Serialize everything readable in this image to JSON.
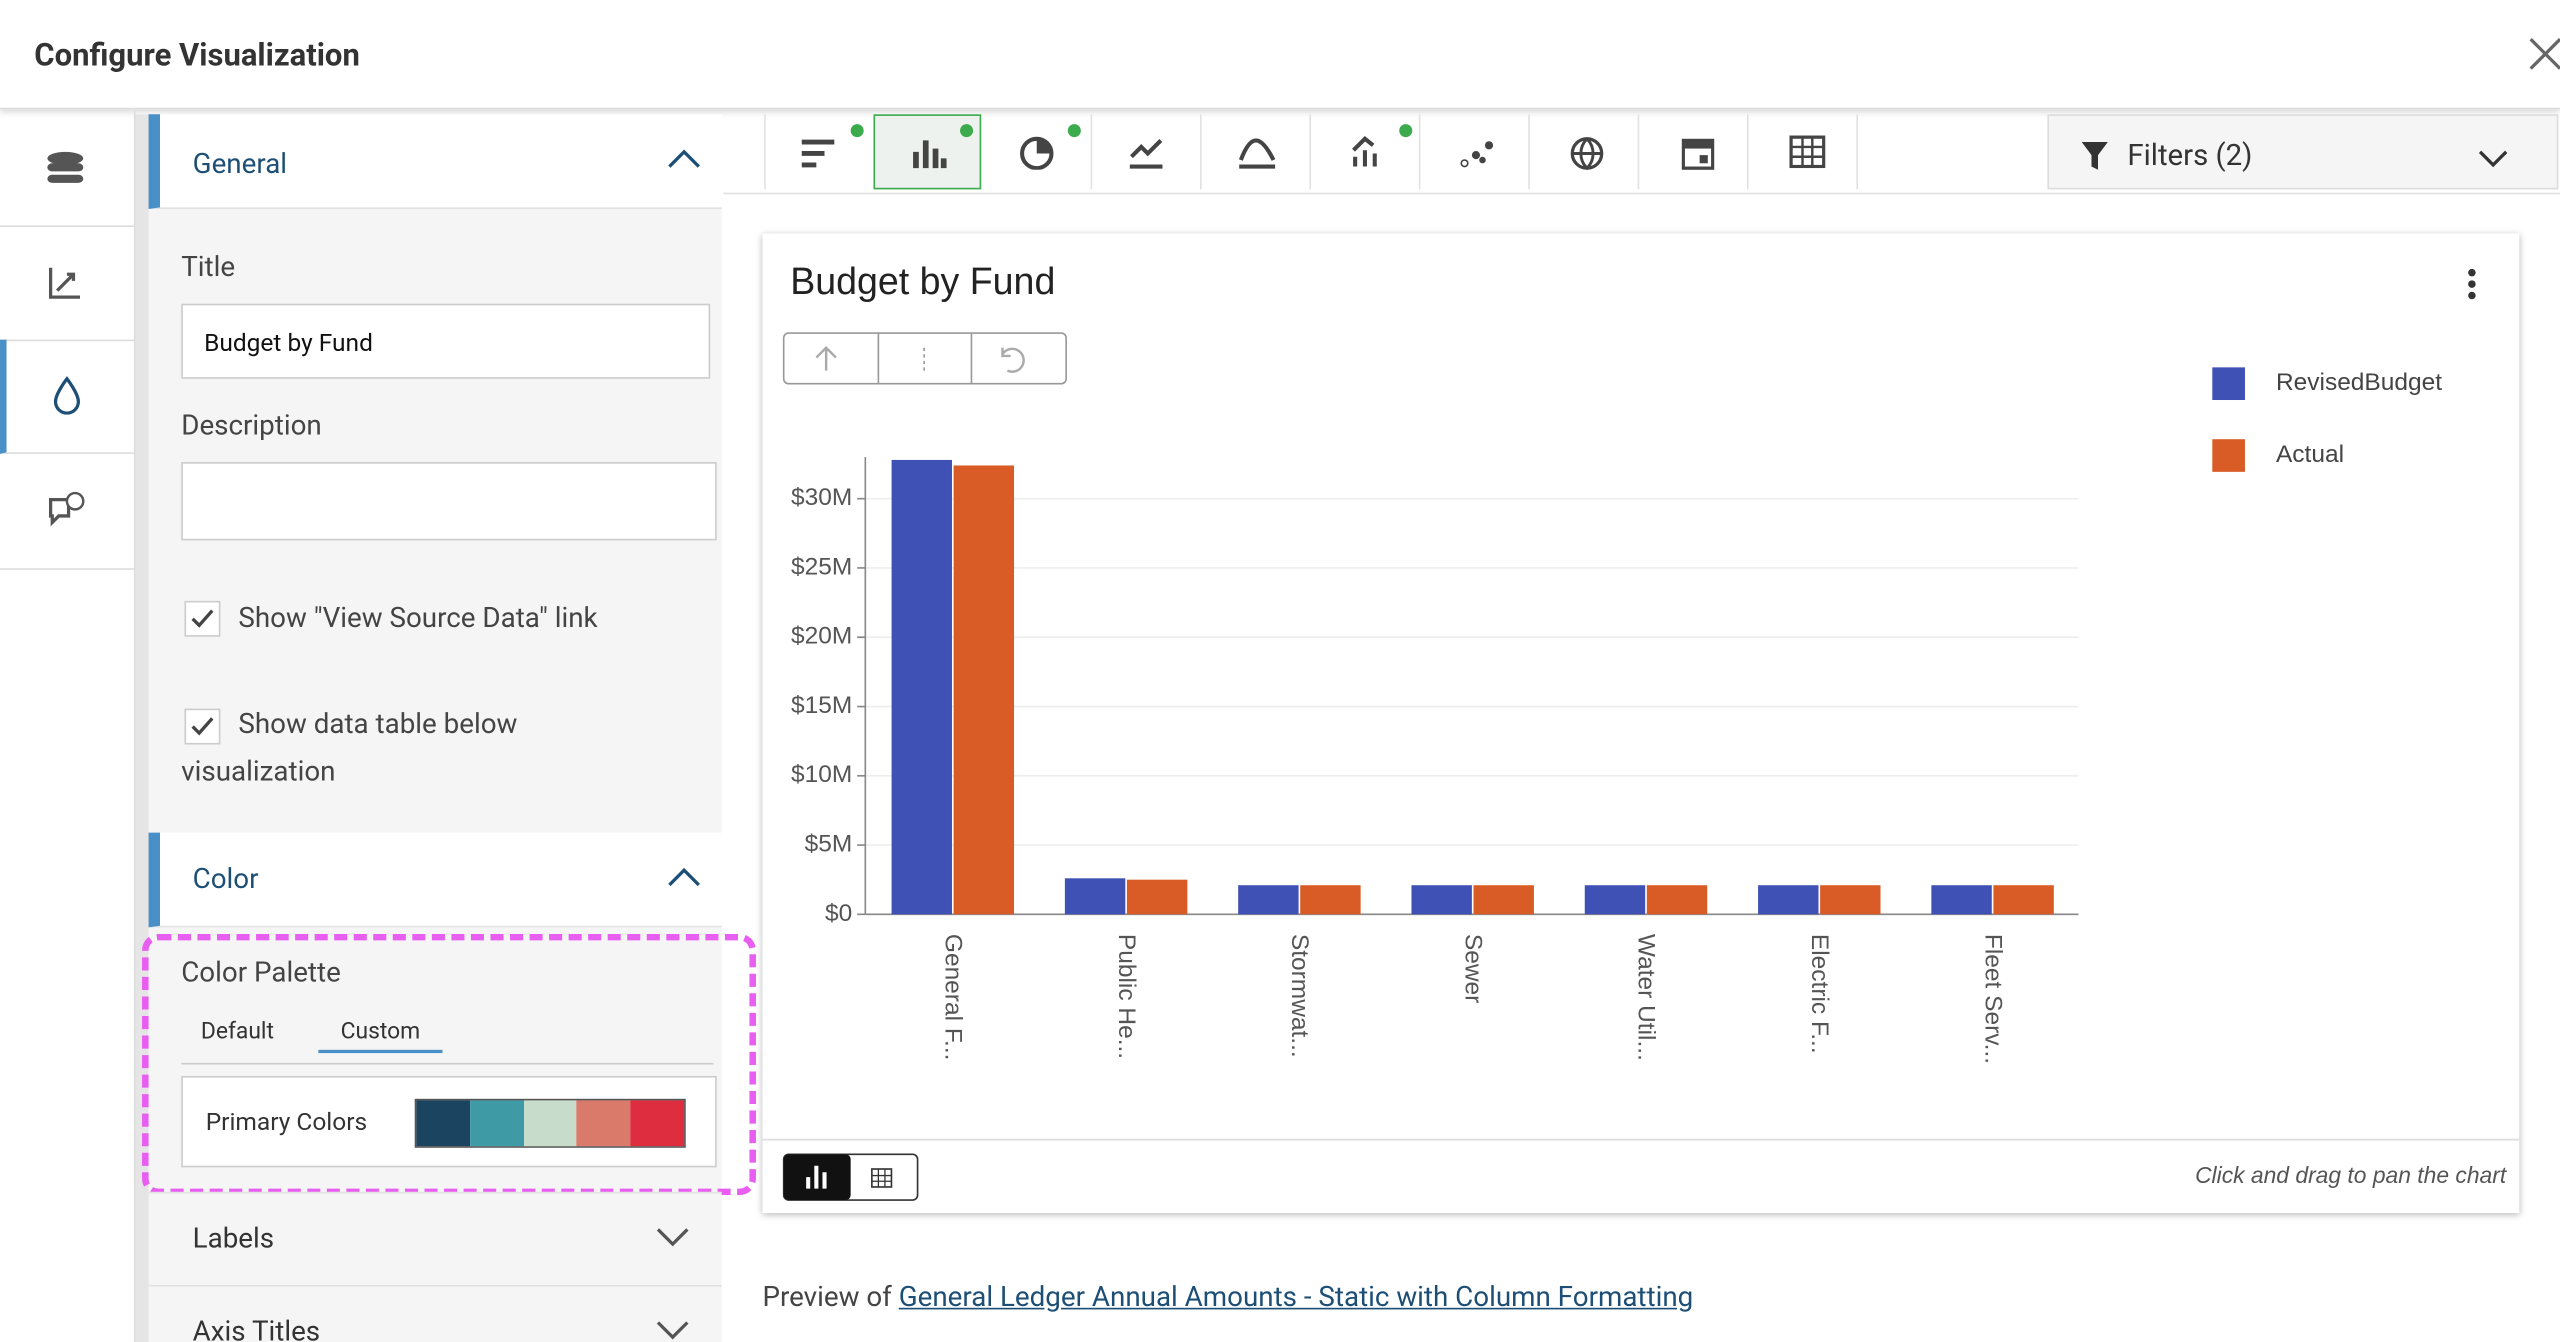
{
  "header": {
    "title": "Configure Visualization"
  },
  "sidebar": {
    "general": {
      "heading": "General",
      "title_label": "Title",
      "title_value": "Budget by Fund",
      "description_label": "Description",
      "checkbox_1": "Show \"View Source Data\" link",
      "checkbox_2": "Show data table below visualization"
    },
    "color": {
      "heading": "Color",
      "palette_label": "Color Palette",
      "tabs": [
        "Default",
        "Custom"
      ],
      "primary_colors": "Primary Colors"
    },
    "labels": "Labels",
    "axis_titles": "Axis Titles"
  },
  "filters": "Filters (2)",
  "chart_data": {
    "type": "bar",
    "title": "Budget by Fund",
    "categories": [
      "General F...",
      "Public He...",
      "Stormwat...",
      "Sewer",
      "Water Util...",
      "Electric F...",
      "Fleet Serv..."
    ],
    "series": [
      {
        "name": "RevisedBudget",
        "color": "#3f51b5",
        "values": [
          32800000,
          2600000,
          2100000,
          2100000,
          2100000,
          2100000,
          2100000
        ]
      },
      {
        "name": "Actual",
        "color": "#d95b25",
        "values": [
          32400000,
          2500000,
          2100000,
          2100000,
          2100000,
          2100000,
          2100000
        ]
      }
    ],
    "ylim": [
      0,
      33000000
    ],
    "yticks": [
      {
        "value": 0,
        "label": "$0"
      },
      {
        "value": 5000000,
        "label": "$5M"
      },
      {
        "value": 10000000,
        "label": "$10M"
      },
      {
        "value": 15000000,
        "label": "$15M"
      },
      {
        "value": 20000000,
        "label": "$20M"
      },
      {
        "value": 25000000,
        "label": "$25M"
      },
      {
        "value": 30000000,
        "label": "$30M"
      }
    ],
    "grid": true,
    "legend": "right",
    "note": "Click and drag to pan the chart"
  },
  "footer": {
    "prefix": "Preview of",
    "link": "General Ledger Annual Amounts - Static with Column Formatting"
  }
}
